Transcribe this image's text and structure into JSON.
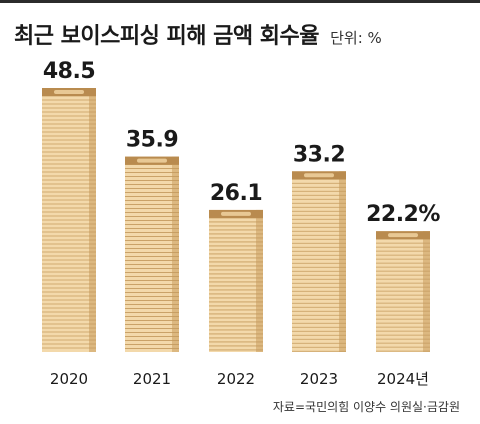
{
  "header": {
    "title": "최근 보이스피싱 피해 금액 회수율",
    "unit": "단위: %"
  },
  "chart_data": {
    "type": "bar",
    "title": "최근 보이스피싱 피해 금액 회수율",
    "categories": [
      "2020",
      "2021",
      "2022",
      "2023",
      "2024년"
    ],
    "values": [
      48.5,
      35.9,
      26.1,
      33.2,
      22.2
    ],
    "value_labels": [
      "48.5",
      "35.9",
      "26.1",
      "33.2",
      "22.2%"
    ],
    "ylim": [
      0,
      50
    ],
    "grid": false,
    "legend": "none",
    "colors": {
      "coin_face": "#f3d9ab",
      "coin_shadow": "#dcb880",
      "coin_line": "#c49a5e",
      "top_cap": "#b98b4f"
    }
  },
  "footer": {
    "source": "자료=국민의힘 이양수 의원실·금감원"
  }
}
